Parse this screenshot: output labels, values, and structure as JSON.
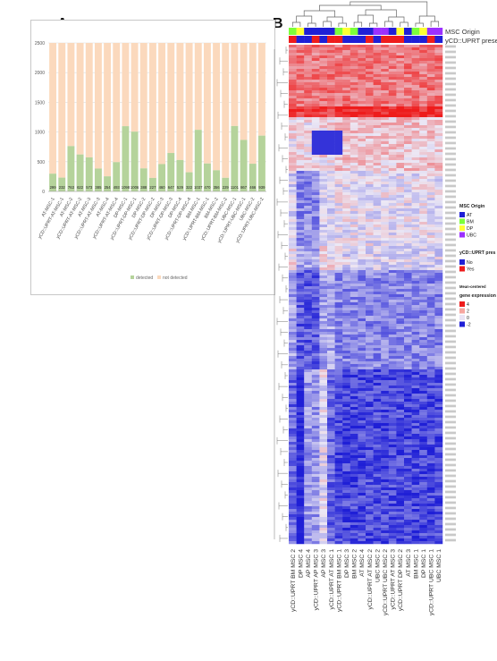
{
  "panels": {
    "a_letter": "A",
    "b_letter": "B"
  },
  "chart_data": [
    {
      "type": "bar",
      "stacked": true,
      "ylim": [
        0,
        2500
      ],
      "yticks": [
        0,
        500,
        1000,
        1500,
        2000,
        2500
      ],
      "total": 2500,
      "categories": [
        "AT-MSC-1",
        "yCD::UPRT-AT-MSC-1",
        "AT-MSC-2",
        "yCD::UPRT-AT-MSC-2",
        "AT-MSC-3",
        "yCD::UPRT-AT-MSC-3",
        "AT-MSC-4",
        "yCD::UPRT-AT-MSC-4",
        "DP-MSC-1",
        "yCD::UPRT-DP-MSC-1",
        "DP-MSC-2",
        "yCD::UPRT-DP-MSC-2",
        "DP-MSC-3",
        "yCD::UPRT-DP-MSC-3",
        "DP-MSC-4",
        "yCD::UPRT-DP-MSC-4",
        "BM-MSC-1",
        "yCD::UPRT-BM-MSC-1",
        "BM-MSC-2",
        "yCD::UPRT-BM-MSC-2",
        "UBC-MSC-1",
        "yCD::UPRT-UBC-MSC-1",
        "UBC-MSC-2",
        "yCD::UPRT-UBC-MSC-2"
      ],
      "series": [
        {
          "name": "detected",
          "color": "#b5d39b",
          "values": [
            299,
            232,
            763,
            622,
            573,
            385,
            254,
            493,
            1098,
            1006,
            388,
            227,
            460,
            647,
            529,
            322,
            1037,
            470,
            356,
            229,
            1101,
            867,
            466,
            939
          ]
        },
        {
          "name": "not detected",
          "color": "#fbd9bd",
          "values": [
            2201,
            2268,
            1737,
            1878,
            1927,
            2115,
            2246,
            2007,
            1402,
            1494,
            2112,
            2273,
            2040,
            1853,
            1971,
            2178,
            1463,
            2030,
            2144,
            2271,
            1399,
            1633,
            2034,
            1561
          ]
        }
      ],
      "data_labels": [
        "299",
        "232",
        "763",
        "622",
        "573",
        "385",
        "254",
        "493",
        "1098",
        "1006",
        "388",
        "227",
        "460",
        "647",
        "529",
        "322",
        "1037",
        "470",
        "356",
        "229",
        "1101",
        "867",
        "466",
        "939"
      ],
      "legend": [
        "detected",
        "not detected"
      ],
      "legend_position": "bottom"
    },
    {
      "type": "heatmap",
      "columns": [
        "yCD::UPRT BM MSC 2",
        "DP MSC 4",
        "AP MSC 4",
        "yCD::UPRT AP MSC 3",
        "AP MSC 3",
        "yCD::UPRT AT MSC 1",
        "yCD::UPRT BM MSC 1",
        "DP MSC 3",
        "BM MSC 2",
        "AT MSC 4",
        "yCD::UPRT AT MSC 2",
        "UBC MSC 2",
        "yCD::UPRT UBC MSC 2",
        "yCD::UPRT AT MSC 3",
        "yCD::UPRT DP MSC 2",
        "AT MSC 3",
        "BM MSC 1",
        "DP MSC 1",
        "yCD::UPRT UBC MSC 1",
        "UBC MSC 1"
      ],
      "annotation_titles": [
        "MSC Origin",
        "yCD::UPRT presence"
      ],
      "msc_origin": [
        "BM",
        "DP",
        "AT",
        "AT",
        "AT",
        "AT",
        "BM",
        "DP",
        "BM",
        "AT",
        "AT",
        "UBC",
        "UBC",
        "AT",
        "DP",
        "AT",
        "BM",
        "DP",
        "UBC",
        "UBC"
      ],
      "uprt_presence": [
        "Yes",
        "No",
        "No",
        "Yes",
        "No",
        "Yes",
        "Yes",
        "No",
        "No",
        "No",
        "Yes",
        "No",
        "Yes",
        "Yes",
        "Yes",
        "No",
        "No",
        "No",
        "Yes",
        "No"
      ],
      "legend": {
        "origin_title": "MSC Origin",
        "origin_items": [
          {
            "label": "AT",
            "color": "#1f1fd6"
          },
          {
            "label": "BM",
            "color": "#7cff3a"
          },
          {
            "label": "DP",
            "color": "#ffff33"
          },
          {
            "label": "UBC",
            "color": "#9b30ff"
          }
        ],
        "presence_title": "yCD::UPRT pres",
        "presence_items": [
          {
            "label": "No",
            "color": "#1f1fd6"
          },
          {
            "label": "Yes",
            "color": "#ee1c1c"
          }
        ],
        "expr_title_1": "Mean-centered",
        "expr_title_2": "gene expression",
        "expr_items": [
          {
            "label": "4",
            "color": "#ee1c1c"
          },
          {
            "label": "2",
            "color": "#f6a6a0"
          },
          {
            "label": "0",
            "color": "#e9e3f4"
          },
          {
            "label": "-2",
            "color": "#1f1fd6"
          }
        ]
      },
      "colors": {
        "high": "#ee1c1c",
        "mid": "#ece8f5",
        "low": "#1f1fd6"
      }
    }
  ]
}
